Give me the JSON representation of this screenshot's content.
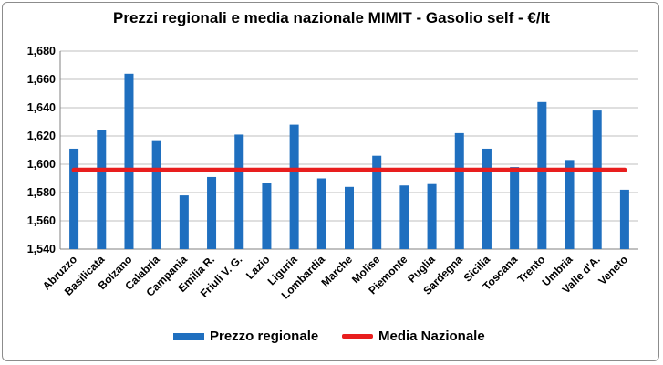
{
  "chart_data": {
    "type": "bar",
    "title": "Prezzi regionali e media nazionale MIMIT - Gasolio self - €/lt",
    "xlabel": "",
    "ylabel": "",
    "categories": [
      "Abruzzo",
      "Basilicata",
      "Bolzano",
      "Calabria",
      "Campania",
      "Emilia R.",
      "Friuli V. G.",
      "Lazio",
      "Liguria",
      "Lombardia",
      "Marche",
      "Molise",
      "Piemonte",
      "Puglia",
      "Sardegna",
      "Sicilia",
      "Toscana",
      "Trento",
      "Umbria",
      "Valle d'A.",
      "Veneto"
    ],
    "series": [
      {
        "name": "Prezzo regionale",
        "type": "bar",
        "color": "#1f6fbf",
        "values": [
          1.611,
          1.624,
          1.664,
          1.617,
          1.578,
          1.591,
          1.621,
          1.587,
          1.628,
          1.59,
          1.584,
          1.606,
          1.585,
          1.586,
          1.622,
          1.611,
          1.598,
          1.644,
          1.603,
          1.638,
          1.582
        ]
      },
      {
        "name": "Media Nazionale",
        "type": "line",
        "color": "#e81e1e",
        "value": 1.596
      }
    ],
    "ylim": [
      1.54,
      1.68
    ],
    "yticks": [
      1.54,
      1.56,
      1.58,
      1.6,
      1.62,
      1.64,
      1.66,
      1.68
    ],
    "ytick_labels": [
      "1,540",
      "1,560",
      "1,580",
      "1,600",
      "1,620",
      "1,640",
      "1,660",
      "1,680"
    ],
    "grid": true,
    "legend": "bottom"
  }
}
